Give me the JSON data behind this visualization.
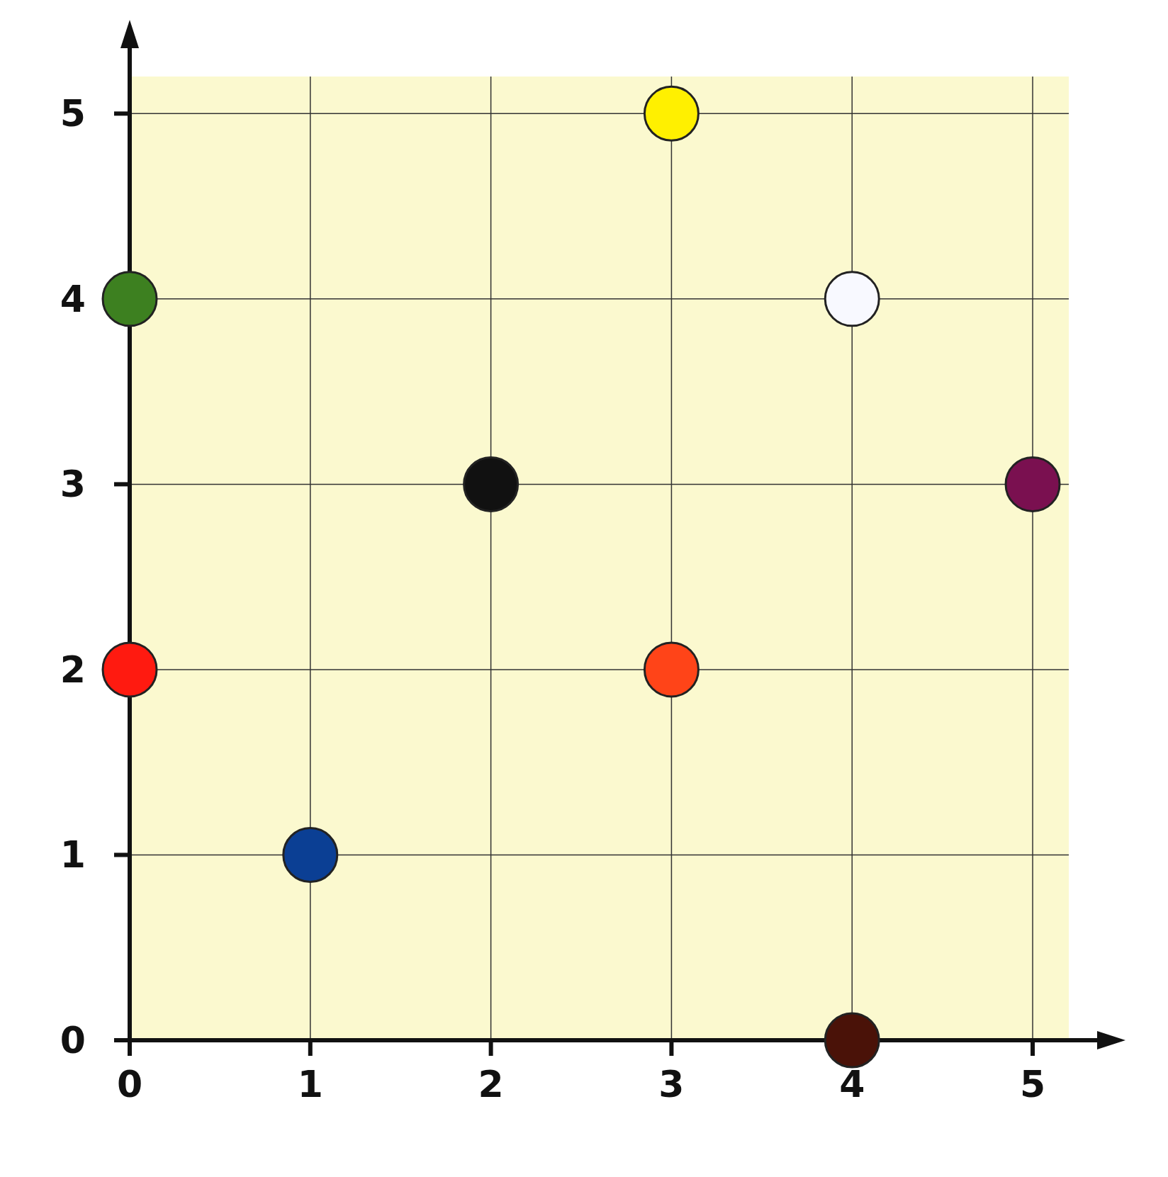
{
  "chart_data": {
    "type": "scatter",
    "x": [
      0,
      0,
      1,
      2,
      3,
      3,
      4,
      4,
      5
    ],
    "values": [
      4,
      2,
      1,
      3,
      5,
      2,
      4,
      0,
      3
    ],
    "colors": [
      "#3d8020",
      "#ff1a10",
      "#0b3f94",
      "#111111",
      "#fff000",
      "#ff4418",
      "#f8f9ff",
      "#4a1208",
      "#7a1050"
    ],
    "marker": "circle",
    "xlim": [
      0,
      5.2
    ],
    "ylim": [
      0,
      5.2
    ],
    "xticks": [
      0,
      1,
      2,
      3,
      4,
      5
    ],
    "yticks": [
      0,
      1,
      2,
      3,
      4,
      5
    ],
    "grid": true
  }
}
